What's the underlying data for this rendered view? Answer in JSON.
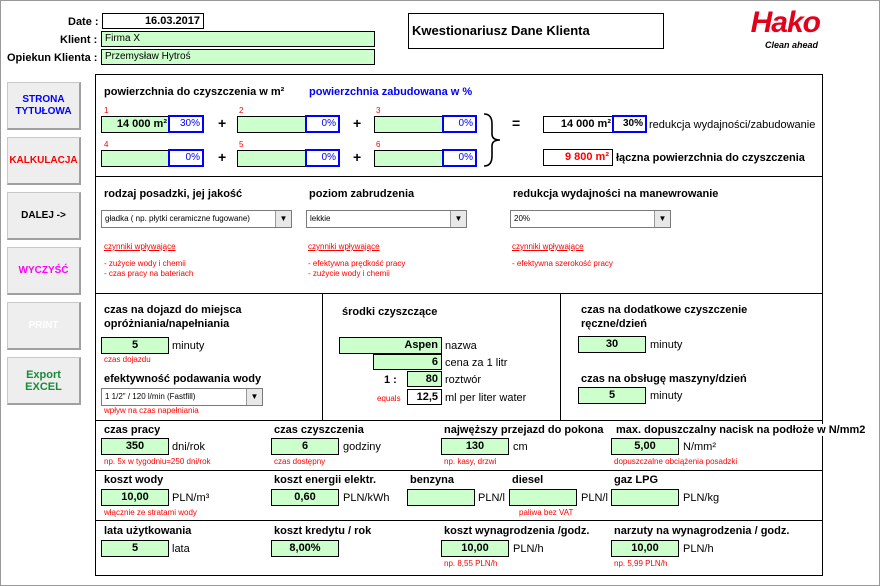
{
  "header": {
    "date_label": "Date :",
    "date_value": "16.03.2017",
    "client_label": "Klient :",
    "client_value": "Firma X",
    "opiekun_label": "Opiekun Klienta :",
    "opiekun_value": "Przemysław Hytroś",
    "title": "Kwestionariusz Dane Klienta",
    "logo_text": "Hako",
    "logo_tagline": "Clean ahead"
  },
  "sidebar": {
    "strona": "STRONA TYTUŁOWA",
    "kalkulacja": "KALKULACJA",
    "dalej": "DALEJ ->",
    "wyczysc": "WYCZYŚĆ",
    "print": "PRINT",
    "export": "Export EXCEL"
  },
  "area": {
    "label": "powierzchnia do czyszczenia w m²",
    "built_label": "powierzchnia zabudowana w %",
    "n1": "1",
    "n2": "2",
    "n3": "3",
    "n4": "4",
    "n5": "5",
    "n6": "6",
    "a1": "14 000 m²",
    "p1": "30%",
    "a2": "",
    "p2": "0%",
    "a3": "",
    "p3": "0%",
    "a4": "",
    "p4": "0%",
    "a5": "",
    "p5": "0%",
    "a6": "",
    "p6": "0%",
    "plus": "+",
    "equals": "=",
    "result_area": "14 000 m²",
    "result_pct": "30%",
    "result_label": "redukcja wydajności/zabudowanie",
    "total_area": "9 800 m²",
    "total_label": "łączna powierzchnia do czyszczenia"
  },
  "floor": {
    "label": "rodzaj posadzki, jej jakość",
    "value": "gładka ( np. płytki ceramiczne fugowane)",
    "factors": "czynniki wpływające",
    "f1": "-  zużycie wody i chemii",
    "f2": "-  czas pracy na bateriach"
  },
  "dirt": {
    "label": "poziom zabrudzenia",
    "value": "lekkie",
    "factors": "czynniki wpływające",
    "f1": "-  efektywna prędkość pracy",
    "f2": "-  zużycie wody i chemii"
  },
  "maneuver": {
    "label": "redukcja wydajności na manewrowanie",
    "value": "20%",
    "factors": "czynniki wpływające",
    "f1": "-  efektywna szerokość pracy"
  },
  "travel": {
    "label1": "czas na dojazd do miejsca",
    "label2": "opróżniania/napełniania",
    "value": "5",
    "unit": "minuty",
    "note": "czas dojazdu",
    "water_label": "efektywność podawania wody",
    "water_value": "1 1/2\" / 120 l/min (Fastfill)",
    "water_note": "wpływ na czas napełniania"
  },
  "chem": {
    "label": "środki czyszczące",
    "name": "Aspen",
    "name_label": "nazwa",
    "price": "6",
    "price_label": "cena za 1 litr",
    "ratio_left": "1 :",
    "ratio": "80",
    "ratio_label": "roztwór",
    "equals_label": "equals",
    "ml": "12,5",
    "ml_label": "ml per liter water"
  },
  "extra": {
    "label1": "czas na dodatkowe czyszczenie",
    "label2": "ręczne/dzień",
    "value": "30",
    "unit": "minuty",
    "service_label": "czas na obsługę maszyny/dzień",
    "service_value": "5",
    "service_unit": "minuty"
  },
  "row1": {
    "work_label": "czas pracy",
    "work_value": "350",
    "work_unit": "dni/rok",
    "work_note": "np. 5x w tygodniu=250 dni/rok",
    "clean_label": "czas czyszczenia",
    "clean_value": "6",
    "clean_unit": "godziny",
    "clean_note": "czas dostępny",
    "pass_label": "najwęższy przejazd do pokona",
    "pass_value": "130",
    "pass_unit": "cm",
    "pass_note": "np. kasy, drzwi",
    "press_label": "max. dopuszczalny nacisk na podłoże w N/mm2",
    "press_value": "5,00",
    "press_unit": "N/mm²",
    "press_note": "dopuszczalne obciążenia posadzki"
  },
  "row2": {
    "water_label": "koszt wody",
    "water_value": "10,00",
    "water_unit": "PLN/m³",
    "water_note": "włącznie ze stratami wody",
    "energy_label": "koszt energii elektr.",
    "energy_value": "0,60",
    "energy_unit": "PLN/kWh",
    "petrol_label": "benzyna",
    "petrol_value": "",
    "petrol_unit": "PLN/l",
    "diesel_label": "diesel",
    "diesel_value": "",
    "diesel_unit": "PLN/l",
    "diesel_note": "paliwa bez VAT",
    "lpg_label": "gaz LPG",
    "lpg_value": "",
    "lpg_unit": "PLN/kg"
  },
  "row3": {
    "years_label": "lata użytkowania",
    "years_value": "5",
    "years_unit": "lata",
    "credit_label": "koszt kredytu / rok",
    "credit_value": "8,00%",
    "wage_label": "koszt wynagrodzenia /godz.",
    "wage_value": "10,00",
    "wage_unit": "PLN/h",
    "wage_note": "np. 8,55 PLN/h",
    "markup_label": "narzuty na wynagrodzenia / godz.",
    "markup_value": "10,00",
    "markup_unit": "PLN/h",
    "markup_note": "np. 5,99 PLN/h"
  },
  "colors": {
    "green": "#ccffcc",
    "blue": "#0000ff",
    "red": "#ff0000",
    "logo_red": "#e2001a"
  }
}
